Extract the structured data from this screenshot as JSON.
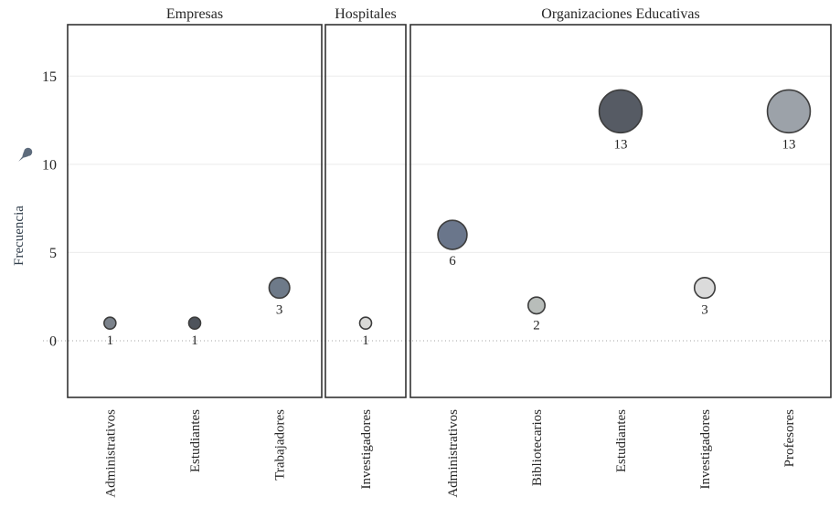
{
  "chart_data": {
    "type": "scatter",
    "subtype": "faceted-bubble",
    "title": "",
    "ylabel": "Frecuencia",
    "xlabel": "",
    "yticks": [
      0,
      5,
      10,
      15
    ],
    "ylim": [
      -3.2,
      17.9
    ],
    "grid": "horizontal solid at 5/10/15, dotted zero line",
    "legend": "none",
    "marker_border_color": "#3d3d3d",
    "axis_icon": "pushpin-icon",
    "axis_icon_color": "#5e6c7d",
    "panels": [
      {
        "title": "Empresas",
        "points": [
          {
            "category": "Administrativos",
            "value": 1,
            "color": "#7b828b"
          },
          {
            "category": "Estudiantes",
            "value": 1,
            "color": "#4e535b"
          },
          {
            "category": "Trabajadores",
            "value": 3,
            "color": "#6e7a89"
          }
        ]
      },
      {
        "title": "Hospitales",
        "points": [
          {
            "category": "Investigadores",
            "value": 1,
            "color": "#d9d9d7"
          }
        ]
      },
      {
        "title": "Organizaciones Educativas",
        "points": [
          {
            "category": "Administrativos",
            "value": 6,
            "color": "#6a768b"
          },
          {
            "category": "Bibliotecarios",
            "value": 2,
            "color": "#b8bdba"
          },
          {
            "category": "Estudiantes",
            "value": 13,
            "color": "#565b64"
          },
          {
            "category": "Investigadores",
            "value": 3,
            "color": "#dbdbdb"
          },
          {
            "category": "Profesores",
            "value": 13,
            "color": "#9ca2a9"
          }
        ]
      }
    ]
  }
}
